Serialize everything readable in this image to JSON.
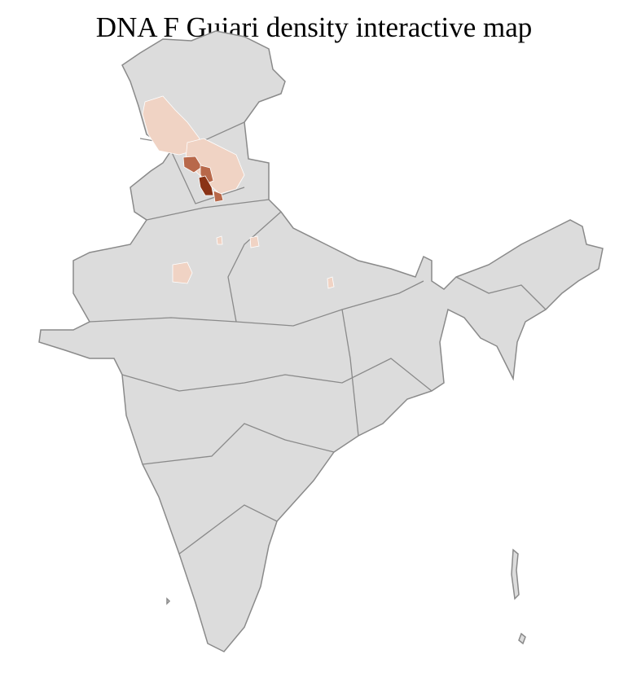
{
  "title": "DNA F Gujari density interactive map",
  "colors": {
    "land": "#dcdcdc",
    "state_border": "#8a8a8a",
    "district_border": "#ffffff",
    "density_low": "#f0d3c4",
    "density_mid": "#b8684a",
    "density_high": "#8a3316"
  }
}
